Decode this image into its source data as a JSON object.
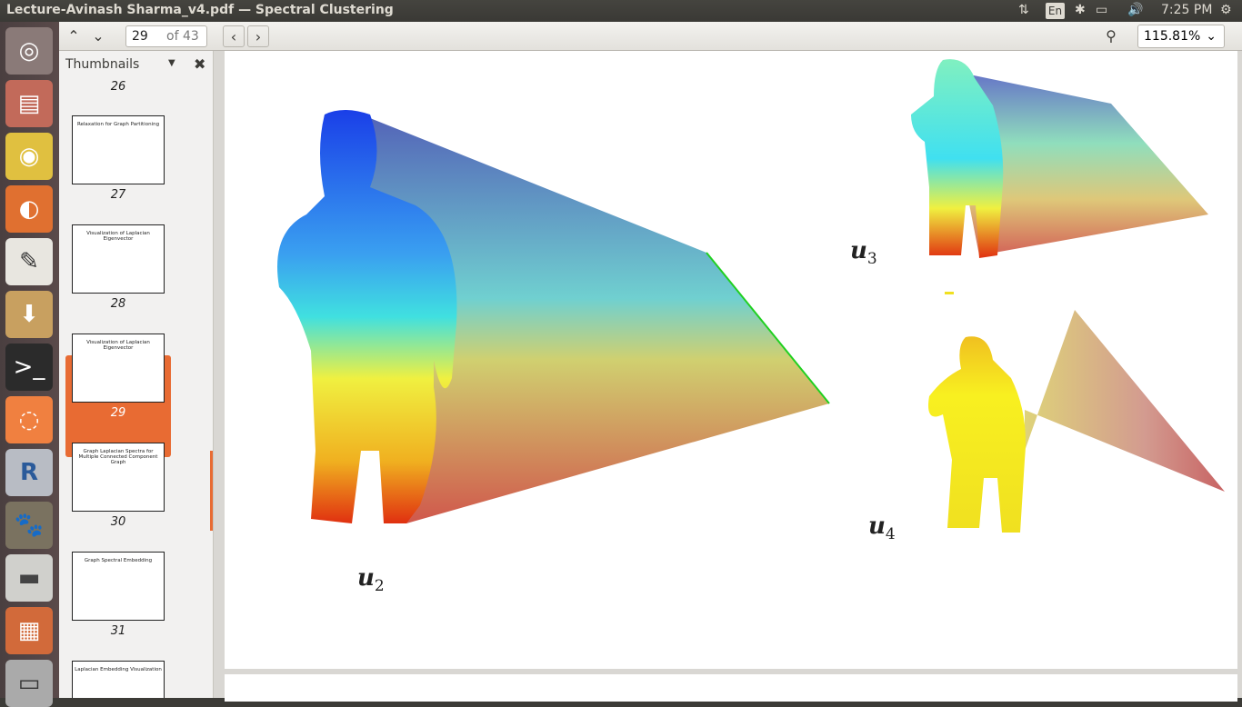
{
  "window": {
    "title": "Lecture-Avinash Sharma_v4.pdf — Spectral Clustering",
    "indicators": {
      "lang": "En",
      "time": "7:25 PM"
    }
  },
  "toolbar": {
    "page_current": "29",
    "page_total": "of 43",
    "zoom": "115.81%"
  },
  "sidebar": {
    "header": "Thumbnails",
    "thumbnails": [
      {
        "num": "26",
        "title": ""
      },
      {
        "num": "27",
        "title": "Relaxation for Graph Partitioning"
      },
      {
        "num": "28",
        "title": "Visualization of Laplacian Eigenvector"
      },
      {
        "num": "29",
        "title": "Visualization of Laplacian Eigenvector"
      },
      {
        "num": "30",
        "title": "Graph Laplacian Spectra for Multiple Connected Component Graph"
      },
      {
        "num": "31",
        "title": "Graph Spectral Embedding"
      },
      {
        "num": "",
        "title": "Laplacian Embedding Visualization"
      }
    ]
  },
  "figure": {
    "labels": {
      "u2_base": "u",
      "u2_sub": "2",
      "u3_base": "u",
      "u3_sub": "3",
      "u4_base": "u",
      "u4_sub": "4"
    }
  }
}
